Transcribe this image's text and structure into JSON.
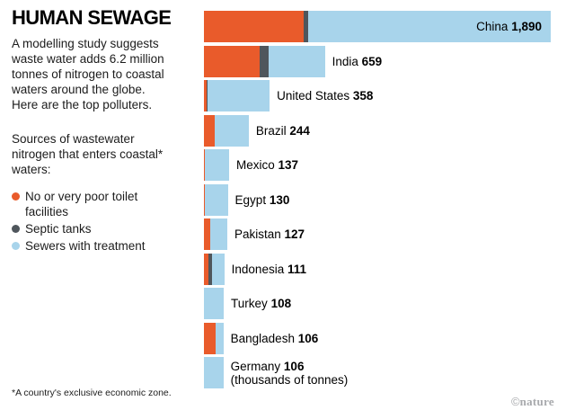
{
  "title": "HUMAN SEWAGE",
  "intro": "A modelling study suggests waste water adds 6.2 million tonnes of nitrogen to coastal waters around the globe. Here are the top polluters.",
  "legend": {
    "intro": "Sources of wastewater nitrogen that enters coastal* waters:",
    "items": [
      {
        "label": "No or very poor toilet facilities",
        "color": "#e95b2b"
      },
      {
        "label": "Septic tanks",
        "color": "#4f565c"
      },
      {
        "label": "Sewers with treatment",
        "color": "#a8d4eb"
      }
    ]
  },
  "footnote": "*A country's exclusive economic zone.",
  "attribution": {
    "symbol": "©",
    "name": "nature"
  },
  "chart_data": {
    "type": "bar",
    "orientation": "horizontal",
    "stacked": true,
    "title": "HUMAN SEWAGE",
    "unit": "thousands of tonnes",
    "unit_note": "(thousands of tonnes)",
    "xlim": [
      0,
      1890
    ],
    "series_names": [
      "No or very poor toilet facilities",
      "Septic tanks",
      "Sewers with treatment"
    ],
    "segment_keys": [
      "no-or-very-poor-toilet-facilities",
      "septic-tanks",
      "sewers-with-treatment"
    ],
    "colors": [
      "#e95b2b",
      "#4f565c",
      "#a8d4eb"
    ],
    "bars": [
      {
        "country": "China",
        "total": 1890,
        "total_label": "1,890",
        "segments": [
          545,
          25,
          1320
        ],
        "label_position": "inside"
      },
      {
        "country": "India",
        "total": 659,
        "total_label": "659",
        "segments": [
          305,
          48,
          306
        ]
      },
      {
        "country": "United States",
        "total": 358,
        "total_label": "358",
        "segments": [
          14,
          8,
          336
        ]
      },
      {
        "country": "Brazil",
        "total": 244,
        "total_label": "244",
        "segments": [
          60,
          0,
          184
        ]
      },
      {
        "country": "Mexico",
        "total": 137,
        "total_label": "137",
        "segments": [
          4,
          0,
          133
        ]
      },
      {
        "country": "Egypt",
        "total": 130,
        "total_label": "130",
        "segments": [
          6,
          0,
          124
        ]
      },
      {
        "country": "Pakistan",
        "total": 127,
        "total_label": "127",
        "segments": [
          33,
          0,
          94
        ]
      },
      {
        "country": "Indonesia",
        "total": 111,
        "total_label": "111",
        "segments": [
          24,
          22,
          65
        ]
      },
      {
        "country": "Turkey",
        "total": 108,
        "total_label": "108",
        "segments": [
          0,
          0,
          108
        ]
      },
      {
        "country": "Bangladesh",
        "total": 106,
        "total_label": "106",
        "segments": [
          62,
          0,
          44
        ]
      },
      {
        "country": "Germany",
        "total": 106,
        "total_label": "106",
        "segments": [
          0,
          0,
          106
        ],
        "sub_label": "(thousands of tonnes)"
      }
    ]
  }
}
